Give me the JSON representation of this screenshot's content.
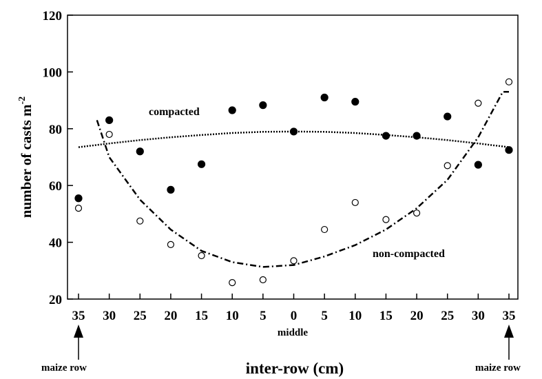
{
  "chart_data": {
    "type": "scatter",
    "title": "",
    "xlabel": "inter-row (cm)",
    "ylabel": "number of casts m",
    "ylabel_superscript": "-2",
    "x_tick_labels": [
      "35",
      "30",
      "25",
      "20",
      "15",
      "10",
      "5",
      "0",
      "5",
      "10",
      "15",
      "20",
      "25",
      "30",
      "35"
    ],
    "x_position_range": [
      0,
      14
    ],
    "ylim": [
      20,
      120
    ],
    "y_ticks": [
      20,
      40,
      60,
      80,
      100,
      120
    ],
    "grid": false,
    "series": [
      {
        "name": "compacted",
        "marker": "filled-circle",
        "points": [
          {
            "x": 0,
            "y": 55.5
          },
          {
            "x": 1,
            "y": 83
          },
          {
            "x": 2,
            "y": 72
          },
          {
            "x": 3,
            "y": 58.5
          },
          {
            "x": 4,
            "y": 67.5
          },
          {
            "x": 5,
            "y": 86.5
          },
          {
            "x": 6,
            "y": 88.3
          },
          {
            "x": 7,
            "y": 79
          },
          {
            "x": 8,
            "y": 91
          },
          {
            "x": 9,
            "y": 89.5
          },
          {
            "x": 10,
            "y": 77.5
          },
          {
            "x": 11,
            "y": 77.5
          },
          {
            "x": 12,
            "y": 84.3
          },
          {
            "x": 13,
            "y": 67.3
          },
          {
            "x": 14,
            "y": 72.5
          }
        ],
        "fit": [
          {
            "x": 0,
            "y": 73.5
          },
          {
            "x": 1,
            "y": 74.8
          },
          {
            "x": 2,
            "y": 76
          },
          {
            "x": 3,
            "y": 77
          },
          {
            "x": 4,
            "y": 77.8
          },
          {
            "x": 5,
            "y": 78.5
          },
          {
            "x": 6,
            "y": 78.9
          },
          {
            "x": 7,
            "y": 79
          },
          {
            "x": 8,
            "y": 78.9
          },
          {
            "x": 9,
            "y": 78.5
          },
          {
            "x": 10,
            "y": 77.8
          },
          {
            "x": 11,
            "y": 77
          },
          {
            "x": 12,
            "y": 76
          },
          {
            "x": 13,
            "y": 74.8
          },
          {
            "x": 14,
            "y": 73.5
          }
        ]
      },
      {
        "name": "non-compacted",
        "marker": "open-circle",
        "points": [
          {
            "x": 0,
            "y": 52
          },
          {
            "x": 1,
            "y": 78
          },
          {
            "x": 2,
            "y": 47.5
          },
          {
            "x": 3,
            "y": 39.2
          },
          {
            "x": 4,
            "y": 35.3
          },
          {
            "x": 5,
            "y": 25.8
          },
          {
            "x": 6,
            "y": 26.8
          },
          {
            "x": 7,
            "y": 33.5
          },
          {
            "x": 8,
            "y": 44.5
          },
          {
            "x": 9,
            "y": 54
          },
          {
            "x": 10,
            "y": 48
          },
          {
            "x": 11,
            "y": 50.3
          },
          {
            "x": 12,
            "y": 67
          },
          {
            "x": 13,
            "y": 89
          },
          {
            "x": 14,
            "y": 96.5
          }
        ],
        "fit": [
          {
            "x": 0.6,
            "y": 83
          },
          {
            "x": 1,
            "y": 70
          },
          {
            "x": 2,
            "y": 55
          },
          {
            "x": 3,
            "y": 44.5
          },
          {
            "x": 4,
            "y": 37
          },
          {
            "x": 5,
            "y": 33
          },
          {
            "x": 6,
            "y": 31.3
          },
          {
            "x": 7,
            "y": 32
          },
          {
            "x": 8,
            "y": 35
          },
          {
            "x": 9,
            "y": 39
          },
          {
            "x": 10,
            "y": 44.5
          },
          {
            "x": 11,
            "y": 52
          },
          {
            "x": 12,
            "y": 62
          },
          {
            "x": 13,
            "y": 77
          },
          {
            "x": 13.8,
            "y": 93
          },
          {
            "x": 14,
            "y": 93
          }
        ]
      }
    ],
    "annotations": {
      "compacted_label": "compacted",
      "noncompacted_label": "non-compacted",
      "middle_label": "middle",
      "maize_left": "maize row",
      "maize_right": "maize row"
    }
  }
}
